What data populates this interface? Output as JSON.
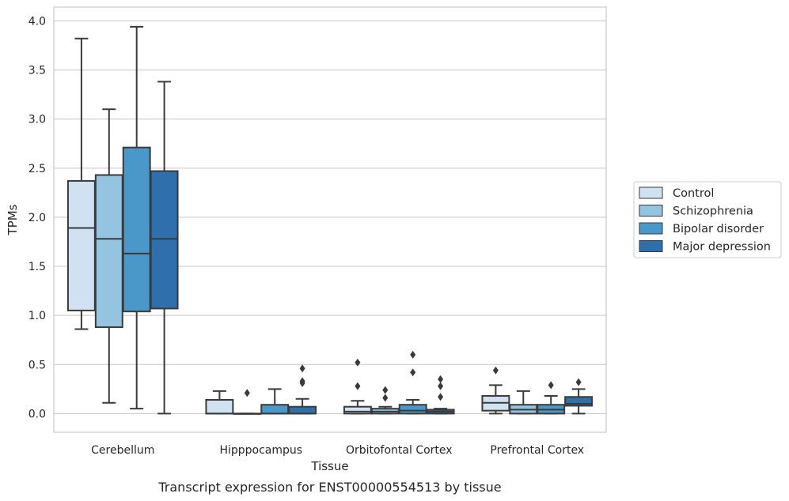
{
  "caption": "Transcript expression for ENST00000554513 by tissue",
  "chart_data": {
    "type": "box",
    "xlabel": "Tissue",
    "ylabel": "TPMs",
    "ylim": [
      -0.19,
      4.14
    ],
    "yticks": [
      0.0,
      0.5,
      1.0,
      1.5,
      2.0,
      2.5,
      3.0,
      3.5,
      4.0
    ],
    "ytick_labels": [
      "0.0",
      "0.5",
      "1.0",
      "1.5",
      "2.0",
      "2.5",
      "3.0",
      "3.5",
      "4.0"
    ],
    "grid": "horizontal",
    "legend_position": "right",
    "categories": [
      "Cerebellum",
      "Hipppocampus",
      "Orbitofontal Cortex",
      "Prefrontal Cortex"
    ],
    "series": [
      {
        "name": "Control",
        "color": "#d0e1f2",
        "boxes": [
          {
            "whislo": 0.86,
            "q1": 1.05,
            "med": 1.89,
            "q3": 2.37,
            "whishi": 3.82,
            "fliers": []
          },
          {
            "whislo": 0.0,
            "q1": 0.0,
            "med": 0.0,
            "q3": 0.14,
            "whishi": 0.23,
            "fliers": []
          },
          {
            "whislo": 0.0,
            "q1": 0.0,
            "med": 0.02,
            "q3": 0.07,
            "whishi": 0.13,
            "fliers": [
              0.28,
              0.52
            ]
          },
          {
            "whislo": 0.0,
            "q1": 0.03,
            "med": 0.11,
            "q3": 0.18,
            "whishi": 0.29,
            "fliers": [
              0.44
            ]
          }
        ]
      },
      {
        "name": "Schizophrenia",
        "color": "#94c4df",
        "boxes": [
          {
            "whislo": 0.11,
            "q1": 0.88,
            "med": 1.78,
            "q3": 2.43,
            "whishi": 3.1,
            "fliers": []
          },
          {
            "whislo": 0.0,
            "q1": 0.0,
            "med": 0.0,
            "q3": 0.0,
            "whishi": 0.0,
            "fliers": [
              0.21
            ]
          },
          {
            "whislo": 0.0,
            "q1": 0.0,
            "med": 0.02,
            "q3": 0.05,
            "whishi": 0.07,
            "fliers": [
              0.16,
              0.24
            ]
          },
          {
            "whislo": 0.0,
            "q1": 0.0,
            "med": 0.04,
            "q3": 0.09,
            "whishi": 0.23,
            "fliers": []
          }
        ]
      },
      {
        "name": "Bipolar disorder",
        "color": "#4a98c9",
        "boxes": [
          {
            "whislo": 0.05,
            "q1": 1.04,
            "med": 1.63,
            "q3": 2.71,
            "whishi": 3.94,
            "fliers": []
          },
          {
            "whislo": 0.0,
            "q1": 0.0,
            "med": 0.0,
            "q3": 0.09,
            "whishi": 0.25,
            "fliers": []
          },
          {
            "whislo": 0.0,
            "q1": 0.0,
            "med": 0.03,
            "q3": 0.09,
            "whishi": 0.14,
            "fliers": [
              0.42,
              0.6
            ]
          },
          {
            "whislo": 0.0,
            "q1": 0.0,
            "med": 0.04,
            "q3": 0.09,
            "whishi": 0.18,
            "fliers": [
              0.29
            ]
          }
        ]
      },
      {
        "name": "Major depression",
        "color": "#2e6fac",
        "boxes": [
          {
            "whislo": 0.0,
            "q1": 1.07,
            "med": 1.78,
            "q3": 2.47,
            "whishi": 3.38,
            "fliers": []
          },
          {
            "whislo": 0.0,
            "q1": 0.0,
            "med": 0.0,
            "q3": 0.07,
            "whishi": 0.15,
            "fliers": [
              0.31,
              0.33,
              0.46
            ]
          },
          {
            "whislo": 0.0,
            "q1": 0.0,
            "med": 0.02,
            "q3": 0.04,
            "whishi": 0.05,
            "fliers": [
              0.17,
              0.28,
              0.35
            ]
          },
          {
            "whislo": 0.0,
            "q1": 0.08,
            "med": 0.1,
            "q3": 0.17,
            "whishi": 0.25,
            "fliers": [
              0.32
            ]
          }
        ]
      }
    ]
  }
}
